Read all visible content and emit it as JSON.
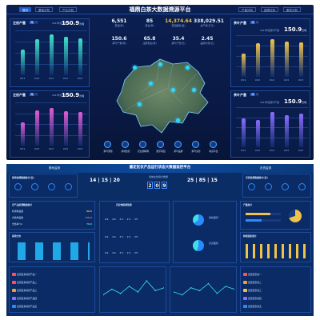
{
  "top": {
    "title": "福鼎白茶大数据溯源平台",
    "tabs_left": [
      "首页",
      "基地分布",
      "产业分析"
    ],
    "tabs_right": [
      "产量分析",
      "追溯分析",
      "服务分析"
    ],
    "left_panel1": {
      "title": "注册产量",
      "toggle": [
        "年",
        "月"
      ],
      "main_value": "150.9",
      "main_unit": "万吨",
      "main_caption": "2023年度注册产量",
      "x": [
        "2019",
        "2020",
        "2021",
        "2022",
        "2023"
      ],
      "values": [
        62,
        88,
        100,
        94,
        90
      ]
    },
    "left_panel2": {
      "title": "注册产量",
      "toggle": [
        "年",
        "月"
      ],
      "main_value": "150.9",
      "main_unit": "万吨",
      "main_caption": "2023年度注册产量",
      "x": [
        "2019",
        "2020",
        "2021",
        "2022",
        "2023"
      ],
      "values": [
        60,
        90,
        96,
        88,
        86
      ]
    },
    "right_panel1": {
      "title": "茶叶产量",
      "toggle": [
        "年",
        "月"
      ],
      "main_value": "150.9",
      "main_unit": "万吨",
      "main_caption": "2023年度茶叶产量",
      "x": [
        "2019",
        "2020",
        "2021",
        "2022",
        "2023"
      ],
      "values": [
        62,
        88,
        100,
        94,
        90
      ]
    },
    "right_panel2": {
      "title": "茶叶产量",
      "toggle": [
        "年",
        "月"
      ],
      "main_value": "150.9",
      "main_unit": "万吨",
      "main_caption": "2023年度茶叶产量",
      "x": [
        "2019",
        "2020",
        "2021",
        "2022",
        "2023"
      ],
      "values": [
        80,
        74,
        96,
        88,
        92
      ]
    },
    "stats": [
      {
        "value": "6,551",
        "label": "茶园(家)"
      },
      {
        "value": "85",
        "label": "茶企(家)"
      },
      {
        "value": "14,374.64",
        "label": "茶园面积(亩)"
      },
      {
        "value": "338,029.51",
        "label": "总产值(万元)"
      },
      {
        "value": "150.6",
        "label": "茶叶产量(吨)"
      },
      {
        "value": "65.8",
        "label": "注册茶企(家)"
      },
      {
        "value": "35.4",
        "label": "茶叶产值(亿)"
      },
      {
        "value": "2.45",
        "label": "品牌价值(亿)"
      }
    ],
    "map_icons": [
      "茶叶溯源",
      "基地监控",
      "农业物联网",
      "数字茶园",
      "茶叶品牌",
      "茶叶交易",
      "电商平台"
    ]
  },
  "bottom": {
    "title": "嘉定区农产品运行状态大数据监控平台",
    "tabs_left": [
      "基地监测"
    ],
    "tabs_right": [
      "农资监测"
    ],
    "left_card_title": "基地监测数据统计(亩)",
    "right_card_title": "农资监测数据统计(亩)",
    "clock_left": [
      "14",
      "15",
      "20"
    ],
    "clock_right": [
      "25",
      "85",
      "15"
    ],
    "counter": [
      "2",
      "0",
      "9"
    ],
    "counter_label": "当前在线用户数量",
    "panel_titles": [
      "农产品检测数据统计",
      "基地分布",
      "农业物联网监测",
      "产量统计",
      "种植面积统计",
      "农资分布"
    ],
    "kpi_left": [
      {
        "label": "检测样品数",
        "value": "80.6"
      },
      {
        "label": "合格样品数",
        "value": "138.8"
      },
      {
        "label": "合格率(%)",
        "value": "78.6"
      }
    ],
    "grid_rows": [
      [
        "29",
        "40",
        "33",
        "24",
        "35"
      ],
      [
        "29",
        "40",
        "33",
        "24",
        "35"
      ],
      [
        "29",
        "40",
        "33",
        "24",
        "35"
      ]
    ],
    "list_items": [
      "嘉定区基地农产品一",
      "嘉定区基地农产品二",
      "嘉定区基地农产品三",
      "嘉定区基地农产品四",
      "嘉定区基地农产品五"
    ],
    "list_right": [
      "嘉定区农资一",
      "嘉定区农资二",
      "嘉定区农资三",
      "嘉定区农资四",
      "嘉定区农资五"
    ],
    "pie_legend": [
      "种植面积",
      "农资面积"
    ],
    "line1_values": [
      10,
      14,
      11,
      16,
      12,
      20,
      13,
      15
    ],
    "line2_values": [
      12,
      10,
      15,
      13,
      18,
      11,
      16,
      14
    ]
  },
  "colors": {
    "accent": "#2a8bff",
    "gold": "#f0c24a",
    "purple": "#8b6cff",
    "cyan": "#3ee0e6",
    "red": "#ff4d6a"
  }
}
